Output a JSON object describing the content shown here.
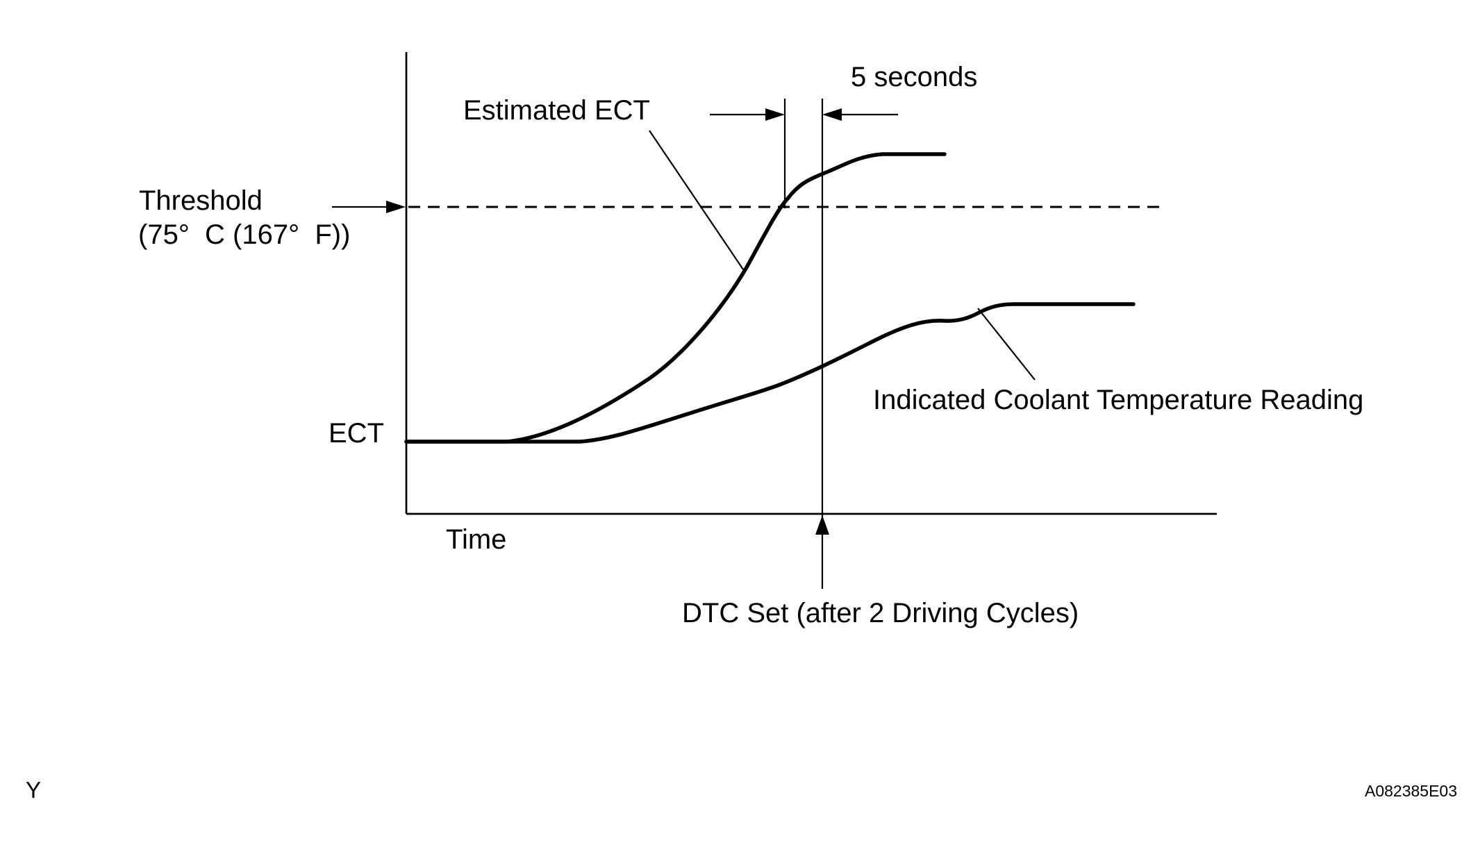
{
  "labels": {
    "estimated_ect": "Estimated ECT",
    "five_seconds": "5 seconds",
    "threshold_line1": "Threshold",
    "threshold_line2": "(75°  C (167°  F))",
    "ect": "ECT",
    "time": "Time",
    "indicated": "Indicated Coolant Temperature Reading",
    "dtc": "DTC Set (after 2 Driving Cycles)",
    "corner_left": "Y",
    "corner_right": "A082385E03"
  }
}
